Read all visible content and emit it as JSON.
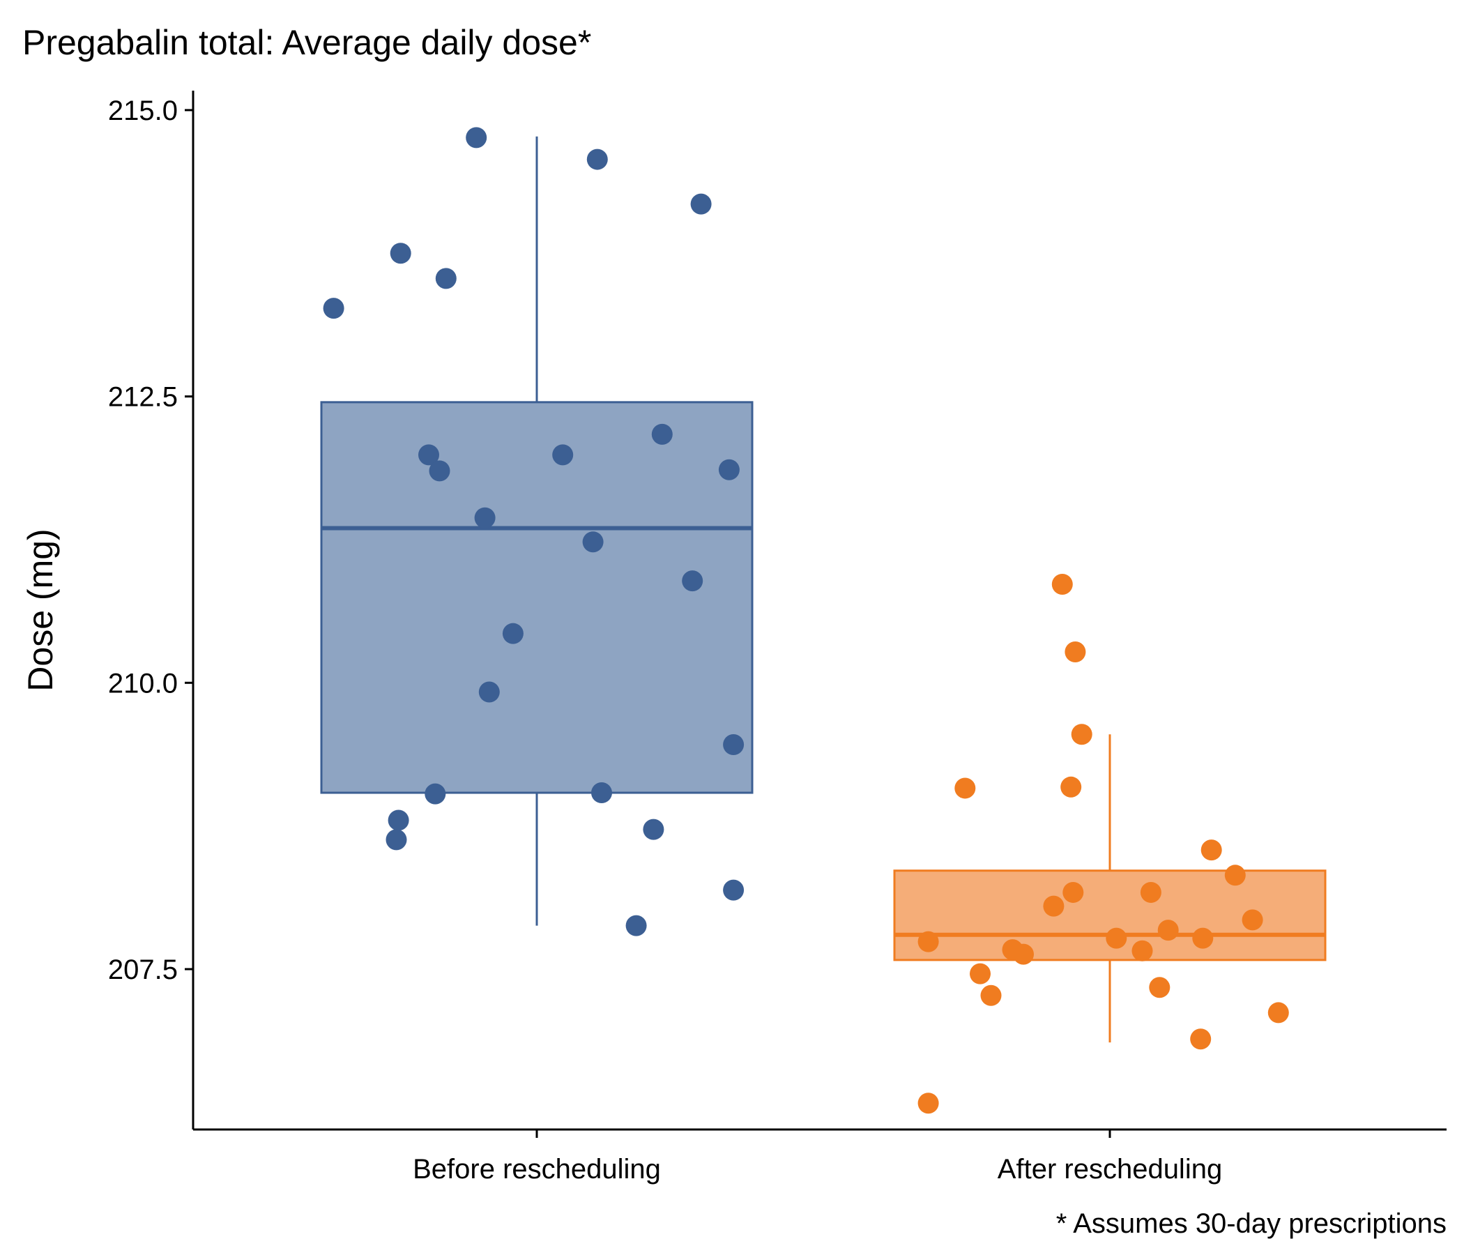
{
  "chart_data": {
    "type": "boxplot",
    "title": "Pregabalin total: Average daily dose*",
    "caption": "* Assumes 30-day prescriptions",
    "xlabel": "",
    "ylabel": "Dose (mg)",
    "ylim": [
      206.1,
      215.17
    ],
    "y_ticks": [
      207.5,
      210.0,
      212.5,
      215.0
    ],
    "y_tick_labels": [
      "207.5",
      "210.0",
      "212.5",
      "215.0"
    ],
    "categories": [
      "Before rescheduling",
      "After rescheduling"
    ],
    "grid": false,
    "legend": "none",
    "series": [
      {
        "category": "Before rescheduling",
        "color": "#3c5f93",
        "fill": "#8ea4c2",
        "box": {
          "whisker_low": 207.88,
          "q1": 209.04,
          "median": 211.35,
          "q3": 212.45,
          "whisker_high": 214.77
        },
        "points": [
          [
            -0.47,
            213.27
          ],
          [
            -0.315,
            213.75
          ],
          [
            -0.21,
            213.53
          ],
          [
            -0.14,
            214.76
          ],
          [
            0.14,
            214.57
          ],
          [
            0.38,
            214.18
          ],
          [
            -0.25,
            211.99
          ],
          [
            -0.225,
            211.85
          ],
          [
            -0.12,
            211.44
          ],
          [
            0.06,
            211.99
          ],
          [
            0.29,
            212.17
          ],
          [
            0.445,
            211.86
          ],
          [
            0.13,
            211.23
          ],
          [
            0.36,
            210.89
          ],
          [
            -0.055,
            210.43
          ],
          [
            -0.11,
            209.92
          ],
          [
            0.455,
            209.46
          ],
          [
            -0.235,
            209.03
          ],
          [
            0.15,
            209.04
          ],
          [
            -0.32,
            208.8
          ],
          [
            -0.325,
            208.63
          ],
          [
            0.27,
            208.72
          ],
          [
            0.455,
            208.19
          ],
          [
            0.23,
            207.88
          ]
        ]
      },
      {
        "category": "After rescheduling",
        "color": "#f07c20",
        "fill": "#f5ad78",
        "box": {
          "whisker_low": 206.86,
          "q1": 207.58,
          "median": 207.8,
          "q3": 208.36,
          "whisker_high": 209.55
        },
        "points": [
          [
            -0.11,
            210.86
          ],
          [
            -0.08,
            210.27
          ],
          [
            -0.065,
            209.55
          ],
          [
            -0.335,
            209.08
          ],
          [
            -0.09,
            209.09
          ],
          [
            0.235,
            208.54
          ],
          [
            0.29,
            208.32
          ],
          [
            0.095,
            208.17
          ],
          [
            -0.085,
            208.17
          ],
          [
            -0.13,
            208.05
          ],
          [
            0.33,
            207.93
          ],
          [
            0.135,
            207.84
          ],
          [
            0.015,
            207.77
          ],
          [
            0.215,
            207.77
          ],
          [
            -0.42,
            207.74
          ],
          [
            -0.225,
            207.67
          ],
          [
            -0.2,
            207.63
          ],
          [
            0.075,
            207.66
          ],
          [
            -0.3,
            207.46
          ],
          [
            0.115,
            207.34
          ],
          [
            -0.275,
            207.27
          ],
          [
            0.39,
            207.12
          ],
          [
            0.21,
            206.89
          ],
          [
            -0.42,
            206.33
          ]
        ]
      }
    ]
  }
}
